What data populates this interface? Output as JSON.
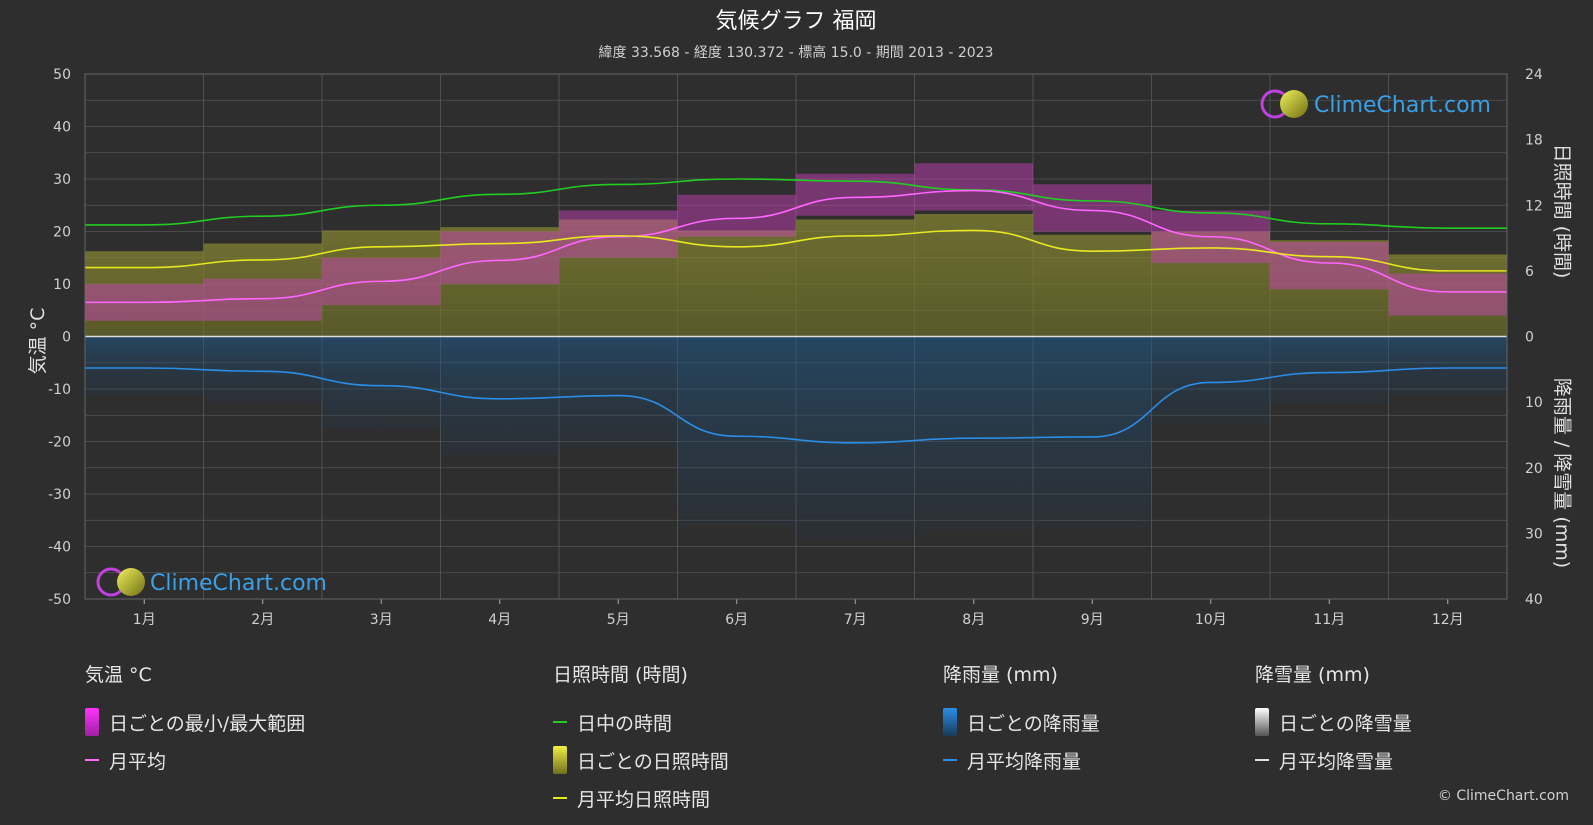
{
  "title": "気候グラフ 福岡",
  "subtitle": "緯度 33.568 - 経度 130.372 - 標高 15.0 - 期間 2013 - 2023",
  "logo_text": "ClimeChart.com",
  "copyright": "© ClimeChart.com",
  "chart_data": {
    "type": "line",
    "categories": [
      "1月",
      "2月",
      "3月",
      "4月",
      "5月",
      "6月",
      "7月",
      "8月",
      "9月",
      "10月",
      "11月",
      "12月"
    ],
    "y_left": {
      "label": "気温 °C",
      "range": [
        -50,
        50
      ],
      "ticks": [
        50,
        40,
        30,
        20,
        10,
        0,
        -10,
        -20,
        -30,
        -40,
        -50
      ]
    },
    "y_right_top": {
      "label": "日照時間 (時間)",
      "range": [
        0,
        24
      ],
      "ticks": [
        24,
        18,
        12,
        6,
        0
      ]
    },
    "y_right_bottom": {
      "label": "降雨量 / 降雪量 (mm)",
      "range": [
        0,
        40
      ],
      "ticks": [
        10,
        20,
        30,
        40
      ]
    },
    "grid": true,
    "series": [
      {
        "name": "日中の時間",
        "unit": "時間",
        "color": "#22cc22",
        "values": [
          10.2,
          11.0,
          12.0,
          13.0,
          13.9,
          14.4,
          14.2,
          13.4,
          12.4,
          11.3,
          10.3,
          9.9
        ]
      },
      {
        "name": "月平均",
        "unit": "°C",
        "color": "#ff66ff",
        "values": [
          6.5,
          7.2,
          10.5,
          14.5,
          19.0,
          22.5,
          26.5,
          27.8,
          24.0,
          19.0,
          14.0,
          8.5
        ]
      },
      {
        "name": "月平均日照時間",
        "unit": "時間",
        "color": "#e8e820",
        "values": [
          6.3,
          7.0,
          8.2,
          8.5,
          9.2,
          8.2,
          9.2,
          9.7,
          7.8,
          8.1,
          7.3,
          6.0
        ]
      },
      {
        "name": "月平均降雨量",
        "unit": "mm",
        "color": "#2a8ee8",
        "values": [
          4.8,
          5.3,
          7.5,
          9.5,
          9.0,
          15.2,
          16.2,
          15.5,
          15.3,
          7.0,
          5.5,
          4.8
        ]
      }
    ],
    "temp_range_max": [
      10,
      11,
      15,
      20,
      24,
      27,
      31,
      33,
      29,
      24,
      18,
      12
    ],
    "temp_range_min": [
      3,
      3,
      6,
      10,
      15,
      19,
      23,
      24,
      20,
      14,
      9,
      4
    ]
  },
  "legend": {
    "temp": {
      "heading": "気温 °C",
      "items": [
        "日ごとの最小/最大範囲",
        "月平均"
      ]
    },
    "sun": {
      "heading": "日照時間 (時間)",
      "items": [
        "日中の時間",
        "日ごとの日照時間",
        "月平均日照時間"
      ]
    },
    "rain": {
      "heading": "降雨量 (mm)",
      "items": [
        "日ごとの降雨量",
        "月平均降雨量"
      ]
    },
    "snow": {
      "heading": "降雪量 (mm)",
      "items": [
        "日ごとの降雪量",
        "月平均降雪量"
      ]
    }
  }
}
